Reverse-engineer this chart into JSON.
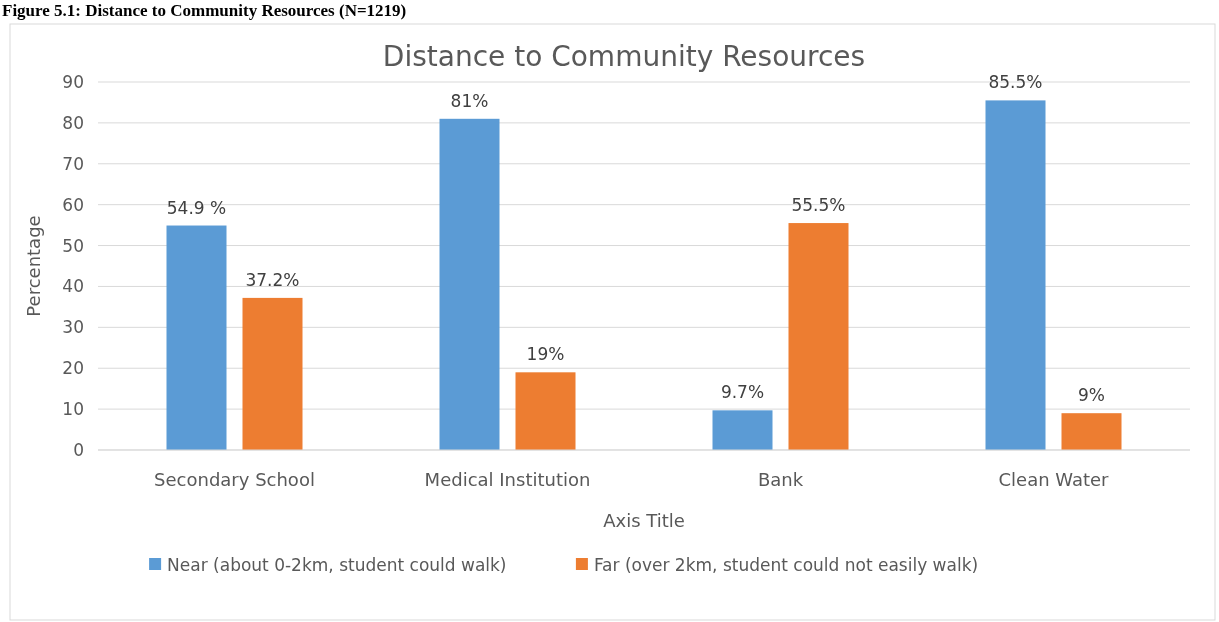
{
  "chart_data": {
    "type": "bar",
    "title": "Distance to Community Resources",
    "xlabel": "Axis Title",
    "ylabel": "Percentage",
    "annotations": [
      "Figure 5.1: Distance to Community Resources (N=1219)"
    ],
    "categories": [
      "Secondary School",
      "Medical Institution",
      "Bank",
      "Clean Water"
    ],
    "series": [
      {
        "name": "Near (about 0-2km, student could walk)",
        "color": "#5b9bd5",
        "values": [
          54.9,
          81,
          9.7,
          85.5
        ],
        "value_labels": [
          "54.9 %",
          "81%",
          "9.7%",
          "85.5%"
        ]
      },
      {
        "name": "Far (over 2km, student could not easily walk)",
        "color": "#ed7d31",
        "values": [
          37.2,
          19,
          55.5,
          9
        ],
        "value_labels": [
          "37.2%",
          "19%",
          "55.5%",
          "9%"
        ]
      }
    ],
    "ylim": [
      0,
      90
    ],
    "yticks": [
      0,
      10,
      20,
      30,
      40,
      50,
      60,
      70,
      80,
      90
    ],
    "grid": "y",
    "legend": "bottom"
  }
}
